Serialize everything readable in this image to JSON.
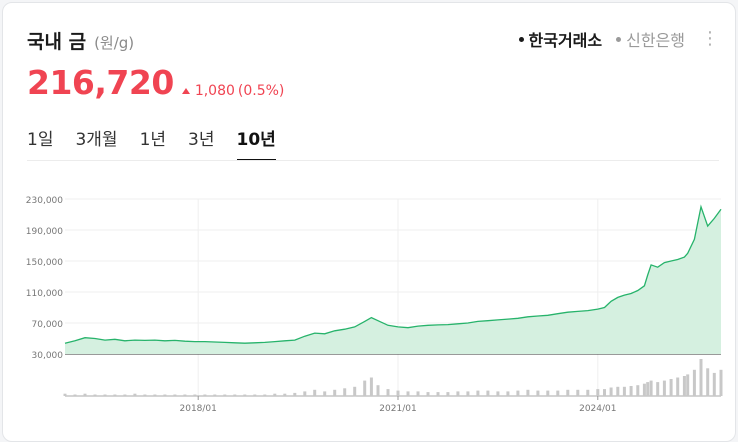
{
  "header": {
    "title": "국내 금",
    "unit": "(원/g)",
    "sources": [
      {
        "label": "한국거래소",
        "active": true
      },
      {
        "label": "신한은행",
        "active": false
      }
    ],
    "more_icon": "more-vertical-icon"
  },
  "price": {
    "value": "216,720",
    "change": "1,080",
    "change_pct": "(0.5%)",
    "direction": "up",
    "color": "#f04452"
  },
  "tabs": [
    {
      "label": "1일",
      "active": false
    },
    {
      "label": "3개월",
      "active": false
    },
    {
      "label": "1년",
      "active": false
    },
    {
      "label": "3년",
      "active": false
    },
    {
      "label": "10년",
      "active": true
    }
  ],
  "chart_data": {
    "type": "area",
    "line_color": "#27b36b",
    "fill_color": "#d5f0e0",
    "ylim": [
      30000,
      230000
    ],
    "y_ticks": [
      "230,000",
      "190,000",
      "150,000",
      "110,000",
      "70,000",
      "30,000"
    ],
    "y_tick_values": [
      230000,
      190000,
      150000,
      110000,
      70000,
      30000
    ],
    "x_range": [
      2016.0,
      2025.85
    ],
    "x_tick_labels": [
      "2018/01",
      "2021/01",
      "2024/01"
    ],
    "x_tick_values": [
      2018.0,
      2021.0,
      2024.0
    ],
    "x": [
      2016.0,
      2016.15,
      2016.3,
      2016.45,
      2016.6,
      2016.75,
      2016.9,
      2017.05,
      2017.2,
      2017.35,
      2017.5,
      2017.65,
      2017.8,
      2017.95,
      2018.1,
      2018.25,
      2018.4,
      2018.55,
      2018.7,
      2018.85,
      2019.0,
      2019.15,
      2019.3,
      2019.45,
      2019.6,
      2019.75,
      2019.9,
      2020.05,
      2020.2,
      2020.35,
      2020.5,
      2020.6,
      2020.7,
      2020.85,
      2021.0,
      2021.15,
      2021.3,
      2021.45,
      2021.6,
      2021.75,
      2021.9,
      2022.05,
      2022.2,
      2022.35,
      2022.5,
      2022.65,
      2022.8,
      2022.95,
      2023.1,
      2023.25,
      2023.4,
      2023.55,
      2023.7,
      2023.85,
      2024.0,
      2024.1,
      2024.2,
      2024.3,
      2024.4,
      2024.5,
      2024.6,
      2024.7,
      2024.75,
      2024.8,
      2024.9,
      2025.0,
      2025.1,
      2025.2,
      2025.3,
      2025.35,
      2025.45,
      2025.55,
      2025.65,
      2025.75,
      2025.85
    ],
    "values": [
      44000,
      47000,
      51000,
      50000,
      48000,
      49000,
      47000,
      48000,
      47500,
      48000,
      47000,
      47500,
      46500,
      46000,
      46000,
      45500,
      45000,
      44500,
      44000,
      44500,
      45000,
      46000,
      47000,
      48000,
      53000,
      57000,
      56000,
      60000,
      62000,
      65000,
      72000,
      77000,
      73000,
      67000,
      65000,
      64000,
      66000,
      67000,
      67500,
      68000,
      69000,
      70000,
      72000,
      73000,
      74000,
      75000,
      76000,
      78000,
      79000,
      80000,
      82000,
      84000,
      85000,
      86000,
      88000,
      90000,
      98000,
      103000,
      106000,
      108000,
      112000,
      118000,
      132000,
      145000,
      142000,
      148000,
      150000,
      152000,
      155000,
      160000,
      178000,
      220000,
      195000,
      205000,
      216720
    ],
    "volume": [
      3,
      2,
      3,
      2,
      2,
      2,
      2,
      3,
      2,
      2,
      2,
      2,
      2,
      2,
      2,
      2,
      2,
      2,
      2,
      2,
      2,
      3,
      3,
      4,
      6,
      8,
      6,
      8,
      10,
      12,
      20,
      24,
      14,
      9,
      7,
      6,
      6,
      5,
      5,
      5,
      6,
      6,
      7,
      7,
      6,
      6,
      7,
      8,
      7,
      7,
      7,
      8,
      8,
      8,
      9,
      9,
      11,
      12,
      12,
      13,
      14,
      16,
      18,
      20,
      18,
      20,
      22,
      24,
      26,
      28,
      34,
      48,
      36,
      30,
      34
    ]
  }
}
